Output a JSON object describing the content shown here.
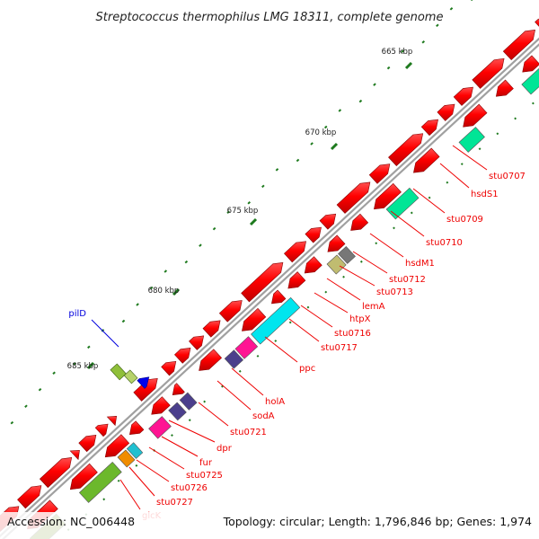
{
  "title": "Streptococcus thermophilus LMG 18311, complete genome",
  "footer": {
    "accession": "Accession: NC_006448",
    "summary": "Topology: circular; Length: 1,796,846 bp; Genes: 1,974"
  },
  "kbp_ticks": [
    "665 kbp",
    "670 kbp",
    "675 kbp",
    "680 kbp",
    "685 kbp"
  ],
  "gene_labels": [
    "stu0707",
    "hsdS1",
    "stu0709",
    "stu0710",
    "hsdM1",
    "stu0712",
    "stu0713",
    "lemA",
    "htpX",
    "stu0716",
    "stu0717",
    "ppc",
    "holA",
    "sodA",
    "stu0721",
    "dpr",
    "fur",
    "stu0725",
    "stu0726",
    "stu0727",
    "glcK",
    "pilD"
  ],
  "colors": {
    "cds": "#ff0000",
    "cds_dark": "#a00000",
    "label_red": "#ee0000",
    "label_blue": "#0000dd",
    "backbone_gray": "#a0a0a0",
    "tick_green": "#1e7a1e"
  }
}
